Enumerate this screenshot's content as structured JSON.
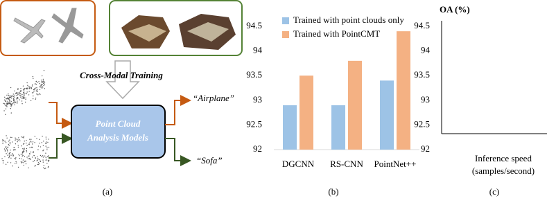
{
  "figure_a": {
    "training_label": "Cross-Modal Training",
    "model_lines": [
      "Point Cloud",
      "Analysis Models"
    ],
    "outputs": [
      "“Airplane”",
      "“Sofa”"
    ],
    "caption": "(a)"
  },
  "chart_data": [
    {
      "type": "bar",
      "caption": "(b)",
      "categories": [
        "DGCNN",
        "RS-CNN",
        "PointNet++"
      ],
      "series": [
        {
          "name": "Trained with point clouds only",
          "color": "#9dc3e6",
          "values": [
            92.9,
            92.9,
            93.4
          ]
        },
        {
          "name": "Trained with PointCMT",
          "color": "#f4b183",
          "values": [
            93.5,
            93.8,
            94.4
          ]
        }
      ],
      "ylim": [
        92,
        94.5
      ],
      "yticks": [
        92,
        92.5,
        93,
        93.5,
        94,
        94.5
      ],
      "legend": "top-left"
    },
    {
      "type": "empty",
      "caption": "(c)",
      "title": "OA (%)",
      "x_label": [
        "Inference speed",
        "(samples/second)"
      ],
      "ylim": [
        92,
        94.5
      ],
      "yticks": [
        92,
        92.5,
        93,
        93.5,
        94,
        94.5
      ]
    }
  ]
}
